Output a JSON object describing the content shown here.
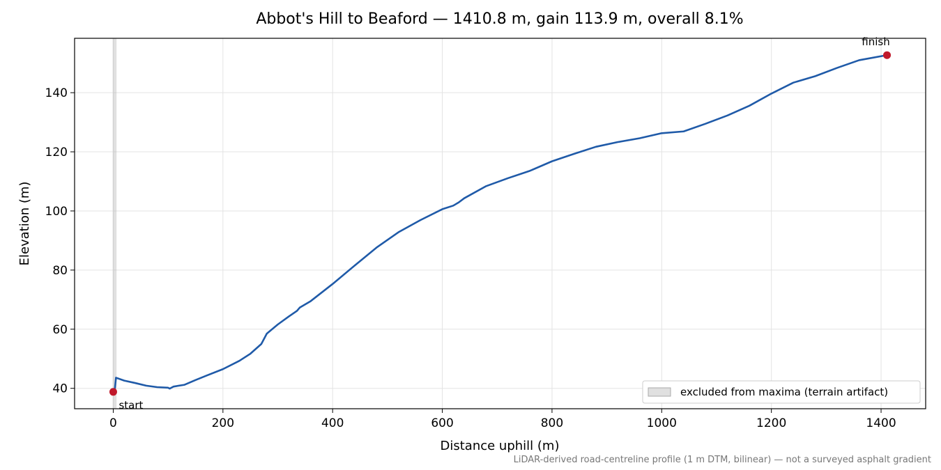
{
  "chart_data": {
    "type": "line",
    "title": "Abbot's Hill to Beaford — 1410.8 m, gain 113.9 m, overall 8.1%",
    "xlabel": "Distance uphill (m)",
    "ylabel": "Elevation (m)",
    "footnote": "LiDAR-derived road-centreline profile (1 m DTM, bilinear) — not a surveyed asphalt gradient",
    "x": [
      0,
      3,
      5,
      20,
      40,
      60,
      80,
      100,
      103,
      110,
      130,
      150,
      170,
      200,
      230,
      250,
      270,
      280,
      300,
      320,
      335,
      340,
      360,
      400,
      440,
      480,
      520,
      560,
      600,
      620,
      630,
      640,
      680,
      720,
      760,
      800,
      840,
      880,
      920,
      960,
      1000,
      1040,
      1080,
      1120,
      1160,
      1200,
      1240,
      1280,
      1320,
      1360,
      1410.8
    ],
    "series": [
      {
        "name": "elevation",
        "color": "#1f5aa8",
        "values": [
          38.8,
          40,
          43.6,
          42.6,
          41.8,
          40.9,
          40.4,
          40.2,
          39.9,
          40.6,
          41.2,
          42.8,
          44.3,
          46.5,
          49.3,
          51.7,
          55,
          58.5,
          61.6,
          64.3,
          66.2,
          67.3,
          69.5,
          75.3,
          81.5,
          87.6,
          92.8,
          96.9,
          100.6,
          101.8,
          102.9,
          104.3,
          108.4,
          111.1,
          113.6,
          116.8,
          119.3,
          121.7,
          123.3,
          124.6,
          126.3,
          126.9,
          129.5,
          132.3,
          135.6,
          139.7,
          143.4,
          145.6,
          148.4,
          151,
          152.7
        ]
      }
    ],
    "markers": [
      {
        "label": "start",
        "x": 0,
        "y": 38.8,
        "color": "#c0182a"
      },
      {
        "label": "finish",
        "x": 1410.8,
        "y": 152.7,
        "color": "#c0182a"
      }
    ],
    "excluded_span": [
      -1,
      6
    ],
    "excluded_label": "excluded from maxima (terrain artifact)",
    "xlim": [
      -70.5,
      1481.3
    ],
    "ylim": [
      33.1,
      158.4
    ],
    "xticks": [
      0,
      200,
      400,
      600,
      800,
      1000,
      1200,
      1400
    ],
    "yticks": [
      40,
      60,
      80,
      100,
      120,
      140
    ],
    "grid": true,
    "legend": "lower right"
  }
}
